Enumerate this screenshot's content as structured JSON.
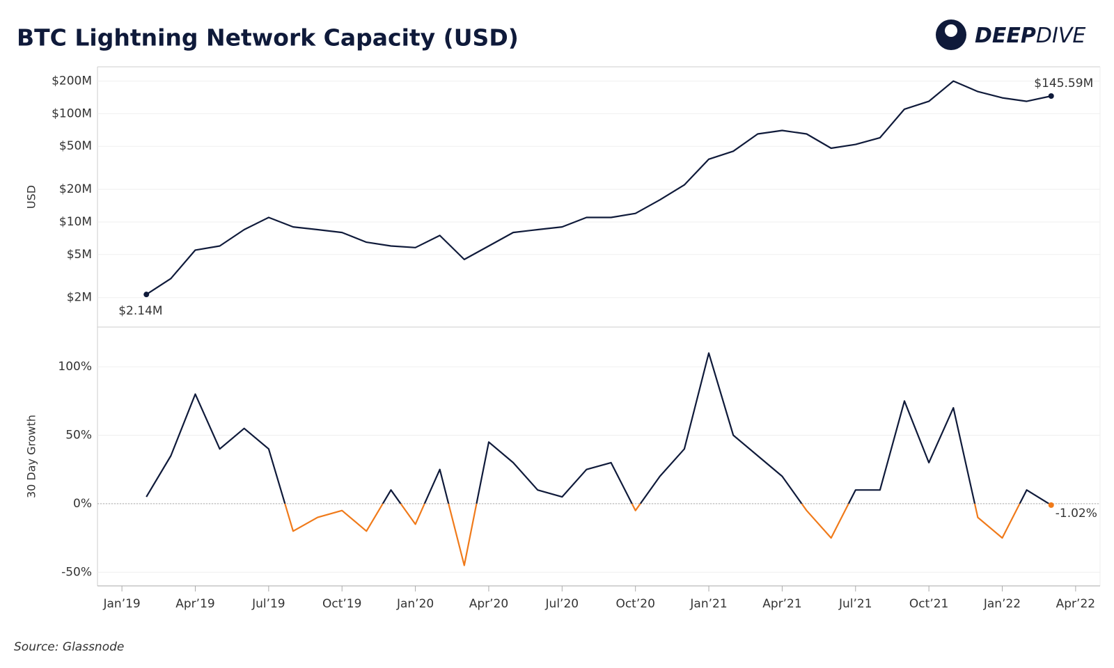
{
  "header": {
    "title": "BTC Lightning Network Capacity (USD)",
    "logo": {
      "bold": "DEEP",
      "light": "DIVE"
    }
  },
  "source": "Source: Glassnode",
  "chart_data": [
    {
      "type": "line",
      "ylabel": "USD",
      "log_scale": true,
      "grid": true,
      "x": [
        "2019-02",
        "2019-03",
        "2019-04",
        "2019-05",
        "2019-06",
        "2019-07",
        "2019-08",
        "2019-09",
        "2019-10",
        "2019-11",
        "2019-12",
        "2020-01",
        "2020-02",
        "2020-03",
        "2020-04",
        "2020-05",
        "2020-06",
        "2020-07",
        "2020-08",
        "2020-09",
        "2020-10",
        "2020-11",
        "2020-12",
        "2021-01",
        "2021-02",
        "2021-03",
        "2021-04",
        "2021-05",
        "2021-06",
        "2021-07",
        "2021-08",
        "2021-09",
        "2021-10",
        "2021-11",
        "2021-12",
        "2022-01",
        "2022-02",
        "2022-03"
      ],
      "xlim": [
        "2018-12",
        "2022-05"
      ],
      "ylim": [
        1070000,
        271000000
      ],
      "yticks": [
        {
          "value": 2000000,
          "label": "$2M"
        },
        {
          "value": 5000000,
          "label": "$5M"
        },
        {
          "value": 10000000,
          "label": "$10M"
        },
        {
          "value": 20000000,
          "label": "$20M"
        },
        {
          "value": 50000000,
          "label": "$50M"
        },
        {
          "value": 100000000,
          "label": "$100M"
        },
        {
          "value": 200000000,
          "label": "$200M"
        }
      ],
      "series": [
        {
          "name": "Capacity",
          "color": "#0f1a3a",
          "values": [
            2140000,
            3000000,
            5500000,
            6000000,
            8500000,
            11000000,
            9000000,
            8500000,
            8000000,
            6500000,
            6000000,
            5800000,
            7500000,
            4500000,
            6000000,
            8000000,
            8500000,
            9000000,
            11000000,
            11000000,
            12000000,
            16000000,
            22000000,
            38000000,
            45000000,
            65000000,
            70000000,
            65000000,
            48000000,
            52000000,
            60000000,
            110000000,
            130000000,
            200000000,
            160000000,
            140000000,
            130000000,
            145590000
          ],
          "value_labels": [
            "$2.14M",
            null,
            null,
            null,
            null,
            null,
            null,
            null,
            null,
            null,
            null,
            null,
            null,
            null,
            null,
            null,
            null,
            null,
            null,
            null,
            null,
            null,
            null,
            null,
            null,
            null,
            null,
            null,
            null,
            null,
            null,
            null,
            null,
            null,
            null,
            null,
            null,
            "$145.59M"
          ]
        }
      ]
    },
    {
      "type": "line",
      "ylabel": "30 Day Growth",
      "grid": true,
      "zero_line": true,
      "x": [
        "2019-02",
        "2019-03",
        "2019-04",
        "2019-05",
        "2019-06",
        "2019-07",
        "2019-08",
        "2019-09",
        "2019-10",
        "2019-11",
        "2019-12",
        "2020-01",
        "2020-02",
        "2020-03",
        "2020-04",
        "2020-05",
        "2020-06",
        "2020-07",
        "2020-08",
        "2020-09",
        "2020-10",
        "2020-11",
        "2020-12",
        "2021-01",
        "2021-02",
        "2021-03",
        "2021-04",
        "2021-05",
        "2021-06",
        "2021-07",
        "2021-08",
        "2021-09",
        "2021-10",
        "2021-11",
        "2021-12",
        "2022-01",
        "2022-02",
        "2022-03"
      ],
      "xlim": [
        "2018-12",
        "2022-05"
      ],
      "xticks": [
        {
          "value": "2019-01",
          "label": "Jan’19"
        },
        {
          "value": "2019-04",
          "label": "Apr’19"
        },
        {
          "value": "2019-07",
          "label": "Jul’19"
        },
        {
          "value": "2019-10",
          "label": "Oct’19"
        },
        {
          "value": "2020-01",
          "label": "Jan’20"
        },
        {
          "value": "2020-04",
          "label": "Apr’20"
        },
        {
          "value": "2020-07",
          "label": "Jul’20"
        },
        {
          "value": "2020-10",
          "label": "Oct’20"
        },
        {
          "value": "2021-01",
          "label": "Jan’21"
        },
        {
          "value": "2021-04",
          "label": "Apr’21"
        },
        {
          "value": "2021-07",
          "label": "Jul’21"
        },
        {
          "value": "2021-10",
          "label": "Oct’21"
        },
        {
          "value": "2022-01",
          "label": "Jan’22"
        },
        {
          "value": "2022-04",
          "label": "Apr’22"
        }
      ],
      "ylim": [
        -60,
        129
      ],
      "yticks": [
        {
          "value": -50,
          "label": "-50%"
        },
        {
          "value": 0,
          "label": "0%"
        },
        {
          "value": 50,
          "label": "50%"
        },
        {
          "value": 100,
          "label": "100%"
        }
      ],
      "series": [
        {
          "name": "30 Day Growth",
          "color": "#0f1a3a",
          "negative_color": "#f07a1a",
          "values": [
            5,
            35,
            80,
            40,
            55,
            40,
            -20,
            -10,
            -5,
            -20,
            10,
            -15,
            25,
            -45,
            45,
            30,
            10,
            5,
            25,
            30,
            -5,
            20,
            40,
            110,
            50,
            35,
            20,
            -5,
            -25,
            10,
            10,
            75,
            30,
            70,
            -10,
            -25,
            10,
            -1.02
          ],
          "value_labels": [
            null,
            null,
            null,
            null,
            null,
            null,
            null,
            null,
            null,
            null,
            null,
            null,
            null,
            null,
            null,
            null,
            null,
            null,
            null,
            null,
            null,
            null,
            null,
            null,
            null,
            null,
            null,
            null,
            null,
            null,
            null,
            null,
            null,
            null,
            null,
            null,
            null,
            "-1.02%"
          ]
        }
      ]
    }
  ]
}
